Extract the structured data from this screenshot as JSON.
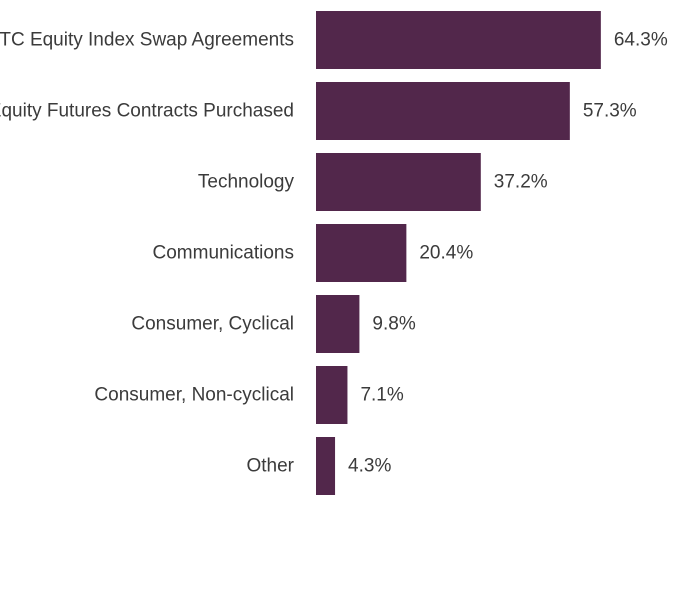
{
  "chart_data": {
    "type": "bar",
    "orientation": "horizontal",
    "title": "",
    "xlabel": "",
    "ylabel": "",
    "categories": [
      "OTC Equity Index Swap Agreements",
      "Equity Futures Contracts Purchased",
      "Technology",
      "Communications",
      "Consumer, Cyclical",
      "Consumer, Non-cyclical",
      "Other"
    ],
    "values": [
      64.3,
      57.3,
      37.2,
      20.4,
      9.8,
      7.1,
      4.3
    ],
    "value_labels": [
      "64.3%",
      "57.3%",
      "37.2%",
      "20.4%",
      "9.8%",
      "7.1%",
      "4.3%"
    ],
    "xlim": [
      0,
      100
    ],
    "grid": false,
    "legend": "none",
    "bar_color": "#52274b"
  }
}
